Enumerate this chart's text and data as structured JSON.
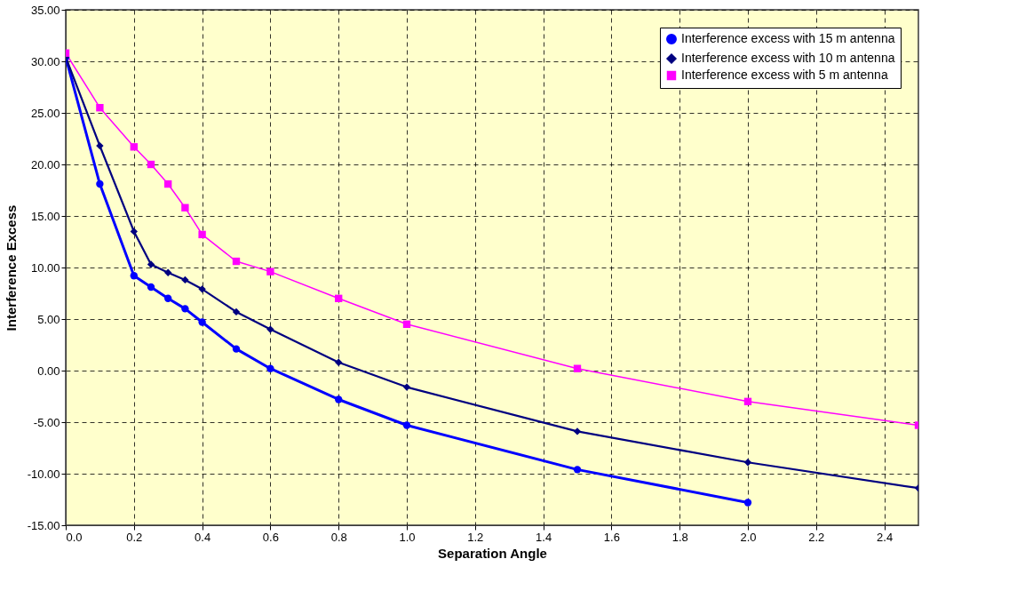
{
  "chart_data": {
    "type": "line",
    "xlabel": "Separation Angle",
    "ylabel": "Interference Excess",
    "x": [
      0,
      0.1,
      0.2,
      0.25,
      0.3,
      0.35,
      0.4,
      0.5,
      0.6,
      0.8,
      1.0,
      1.5,
      2.0,
      2.5
    ],
    "series": [
      {
        "name": "Interference excess with 15 m antenna",
        "color": "#0000ff",
        "marker": "circle",
        "values": [
          30.4,
          18.1,
          9.2,
          8.1,
          7.0,
          6.0,
          4.7,
          2.1,
          0.2,
          -2.8,
          -5.3,
          -9.6,
          -12.8,
          null
        ]
      },
      {
        "name": "Interference excess with 10 m antenna",
        "color": "#000080",
        "marker": "diamond",
        "values": [
          30.4,
          21.8,
          13.5,
          10.3,
          9.5,
          8.8,
          7.9,
          5.7,
          4.0,
          0.8,
          -1.6,
          -5.9,
          -8.9,
          -11.4
        ]
      },
      {
        "name": "Interference excess with 5 m antenna",
        "color": "#ff00ff",
        "marker": "square",
        "values": [
          30.8,
          25.5,
          21.7,
          20.0,
          18.1,
          15.8,
          13.2,
          10.6,
          9.6,
          7.0,
          4.5,
          0.2,
          -3.0,
          -5.3
        ]
      }
    ],
    "xlim": [
      0,
      2.5
    ],
    "xticks": [
      {
        "value": 0,
        "label": "0.0"
      },
      {
        "value": 0.2,
        "label": "0.2"
      },
      {
        "value": 0.4,
        "label": "0.4"
      },
      {
        "value": 0.6,
        "label": "0.6"
      },
      {
        "value": 0.8,
        "label": "0.8"
      },
      {
        "value": 1.0,
        "label": "1.0"
      },
      {
        "value": 1.2,
        "label": "1.2"
      },
      {
        "value": 1.4,
        "label": "1.4"
      },
      {
        "value": 1.6,
        "label": "1.6"
      },
      {
        "value": 1.8,
        "label": "1.8"
      },
      {
        "value": 2.0,
        "label": "2.0"
      },
      {
        "value": 2.2,
        "label": "2.2"
      },
      {
        "value": 2.4,
        "label": "2.4"
      }
    ],
    "ylim": [
      -15,
      35
    ],
    "yticks": [
      {
        "value": -15,
        "label": "-15.00"
      },
      {
        "value": -10,
        "label": "-10.00"
      },
      {
        "value": -5,
        "label": "-5.00"
      },
      {
        "value": 0,
        "label": "0.00"
      },
      {
        "value": 5,
        "label": "5.00"
      },
      {
        "value": 10,
        "label": "10.00"
      },
      {
        "value": 15,
        "label": "15.00"
      },
      {
        "value": 20,
        "label": "20.00"
      },
      {
        "value": 25,
        "label": "25.00"
      },
      {
        "value": 30,
        "label": "30.00"
      },
      {
        "value": 35,
        "label": "35.00"
      }
    ],
    "grid": true,
    "legend": "top right",
    "line_style": "solid"
  }
}
